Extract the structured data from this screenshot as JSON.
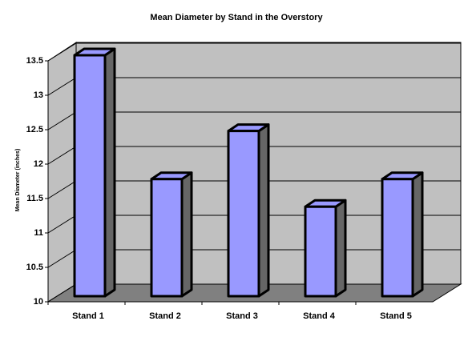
{
  "chart_data": {
    "type": "bar3d",
    "title": "Mean Diameter by Stand in the Overstory",
    "y_label": "Mean Diameter (inches)",
    "categories": [
      "Stand 1",
      "Stand 2",
      "Stand 3",
      "Stand 4",
      "Stand 5"
    ],
    "values": [
      13.5,
      11.7,
      12.4,
      11.3,
      11.7
    ],
    "color": "#9999ff",
    "ylim": [
      10,
      13.5
    ],
    "yticks": [
      10,
      10.5,
      11,
      11.5,
      12,
      12.5,
      13,
      13.5
    ],
    "grid": true
  }
}
